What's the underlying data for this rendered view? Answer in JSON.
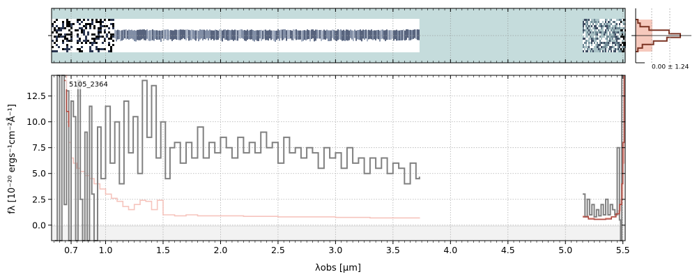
{
  "chart_data": [
    {
      "type": "heatmap",
      "panel": "spectrum-2d",
      "description_colors": {
        "background": "#c5dcdc",
        "trace": "#1e2a44",
        "flux_white": "#ffffff"
      },
      "x_axis_range_um": [
        0.53,
        5.52
      ],
      "trace_segments_um": [
        {
          "start": 0.53,
          "end": 3.73,
          "kind": "bright-band"
        },
        {
          "start": 5.15,
          "end": 5.52,
          "kind": "noisy"
        }
      ],
      "grid": true
    },
    {
      "type": "line",
      "panel": "spatial-profile",
      "annotation": "0.00 ± 1.24",
      "colors": {
        "profile": "#7a3222",
        "fill": "#f6c9bd"
      },
      "profile": [
        0.05,
        0.1,
        0.3,
        0.75,
        1.0,
        0.7,
        0.4,
        0.15,
        0.05
      ]
    },
    {
      "type": "line",
      "panel": "spectrum-1d",
      "annotation": "5105_2364",
      "xlabel": "λobs [μm]",
      "ylabel": "fλ [10⁻²⁰ ergs⁻¹cm⁻²Å⁻¹]",
      "xlim": [
        0.53,
        5.52
      ],
      "ylim": [
        -1.5,
        14.5
      ],
      "xticks": [
        0.7,
        1.0,
        1.5,
        2.0,
        2.5,
        3.0,
        3.5,
        4.0,
        4.5,
        5.0,
        5.5
      ],
      "xtick_labels": [
        "0.7",
        "1.0",
        "1.5",
        "2.0",
        "2.5",
        "3.0",
        "3.5",
        "4.0",
        "4.5",
        "5.0",
        "5.5"
      ],
      "yticks": [
        0.0,
        2.5,
        5.0,
        7.5,
        10.0,
        12.5
      ],
      "ytick_labels": [
        "0.0",
        "2.5",
        "5.0",
        "7.5",
        "10.0",
        "12.5"
      ],
      "grid": true,
      "colors": {
        "flux": "#808080",
        "error": "#f4b5ad",
        "model": "#b04a40"
      },
      "series": [
        {
          "role": "flux",
          "x": [
            0.56,
            0.58,
            0.6,
            0.62,
            0.64,
            0.66,
            0.68,
            0.7,
            0.72,
            0.74,
            0.76,
            0.78,
            0.8,
            0.82,
            0.84,
            0.86,
            0.88,
            0.9,
            0.93,
            0.96,
            1.0,
            1.04,
            1.08,
            1.12,
            1.16,
            1.2,
            1.24,
            1.28,
            1.32,
            1.36,
            1.4,
            1.44,
            1.48,
            1.52,
            1.56,
            1.6,
            1.65,
            1.7,
            1.75,
            1.8,
            1.85,
            1.9,
            1.95,
            2.0,
            2.05,
            2.1,
            2.15,
            2.2,
            2.25,
            2.3,
            2.35,
            2.4,
            2.45,
            2.5,
            2.55,
            2.6,
            2.65,
            2.7,
            2.75,
            2.8,
            2.85,
            2.9,
            2.95,
            3.0,
            3.05,
            3.1,
            3.15,
            3.2,
            3.25,
            3.3,
            3.35,
            3.4,
            3.45,
            3.5,
            3.55,
            3.6,
            3.65,
            3.7,
            3.73
          ],
          "y": [
            -1.5,
            14.5,
            -1.5,
            14.5,
            2.0,
            13.0,
            -1.5,
            12.0,
            10.5,
            -1.5,
            14.0,
            2.5,
            -1.5,
            9.0,
            -1.5,
            11.5,
            3.0,
            -1.5,
            9.5,
            4.5,
            11.5,
            6.0,
            10.0,
            4.0,
            12.0,
            7.0,
            10.5,
            5.0,
            14.0,
            8.5,
            13.5,
            6.5,
            10.0,
            4.5,
            7.5,
            8.0,
            6.0,
            8.0,
            6.5,
            9.5,
            6.5,
            8.0,
            7.0,
            8.5,
            7.5,
            6.5,
            8.5,
            7.0,
            8.0,
            7.0,
            9.0,
            7.5,
            8.0,
            6.0,
            8.5,
            7.0,
            7.5,
            6.5,
            7.5,
            7.0,
            5.5,
            7.5,
            6.5,
            7.0,
            5.5,
            7.5,
            6.0,
            6.5,
            5.0,
            6.5,
            5.5,
            6.5,
            5.0,
            6.0,
            5.5,
            4.0,
            6.0,
            4.5,
            4.7
          ]
        },
        {
          "role": "error",
          "x": [
            0.64,
            0.66,
            0.68,
            0.7,
            0.72,
            0.75,
            0.78,
            0.82,
            0.86,
            0.9,
            0.95,
            1.0,
            1.05,
            1.1,
            1.15,
            1.2,
            1.25,
            1.3,
            1.35,
            1.4,
            1.45,
            1.5,
            1.6,
            1.7,
            1.8,
            2.0,
            2.2,
            2.5,
            2.8,
            3.0,
            3.3,
            3.5,
            3.73
          ],
          "y": [
            14.5,
            10.0,
            8.0,
            6.5,
            6.0,
            5.5,
            5.2,
            4.8,
            4.5,
            4.0,
            3.5,
            3.0,
            2.6,
            2.3,
            1.8,
            1.5,
            2.0,
            2.4,
            2.3,
            1.5,
            2.4,
            1.0,
            0.9,
            1.0,
            0.9,
            0.9,
            0.85,
            0.8,
            0.8,
            0.75,
            0.7,
            0.7,
            0.75
          ]
        },
        {
          "role": "flux",
          "x": [
            5.15,
            5.17,
            5.19,
            5.21,
            5.23,
            5.25,
            5.27,
            5.29,
            5.31,
            5.33,
            5.35,
            5.37,
            5.39,
            5.41,
            5.43,
            5.45,
            5.47,
            5.48,
            5.49,
            5.5
          ],
          "y": [
            3.0,
            0.8,
            2.5,
            1.0,
            2.0,
            0.8,
            1.5,
            0.9,
            2.0,
            1.0,
            2.5,
            1.0,
            2.0,
            1.5,
            1.0,
            7.5,
            0.5,
            -1.5,
            14.5,
            14.5
          ]
        },
        {
          "role": "error",
          "x": [
            5.15,
            5.2,
            5.25,
            5.3,
            5.35,
            5.4,
            5.43,
            5.46,
            5.48,
            5.5,
            5.51
          ],
          "y": [
            0.9,
            0.7,
            0.6,
            0.6,
            0.7,
            0.8,
            1.0,
            1.4,
            2.5,
            6.0,
            14.5
          ]
        },
        {
          "role": "model",
          "x": [
            0.64,
            0.66,
            0.68
          ],
          "y": [
            14.0,
            11.0,
            9.5
          ]
        },
        {
          "role": "model",
          "x": [
            5.15,
            5.2,
            5.25,
            5.3,
            5.35,
            5.4,
            5.44,
            5.47,
            5.49,
            5.5,
            5.51
          ],
          "y": [
            0.8,
            0.6,
            0.55,
            0.55,
            0.6,
            0.8,
            1.1,
            2.0,
            4.0,
            8.0,
            14.5
          ]
        }
      ]
    }
  ]
}
